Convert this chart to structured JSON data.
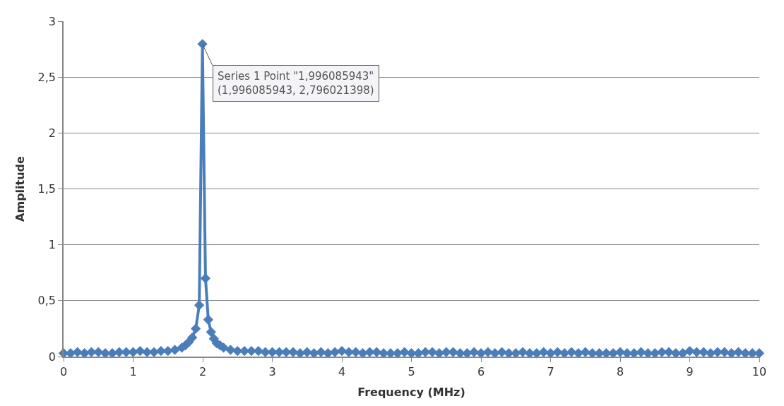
{
  "chart_data": {
    "type": "line",
    "xlabel": "Frequency (MHz)",
    "ylabel": "Amplitude",
    "series": [
      {
        "color": "#4a7ebb",
        "x": [
          0,
          0.1,
          0.2,
          0.3,
          0.4,
          0.5,
          0.6,
          0.7,
          0.8,
          0.9,
          1,
          1.1,
          1.2,
          1.3,
          1.4,
          1.5,
          1.6,
          1.7,
          1.75,
          1.8,
          1.85,
          1.9,
          1.95,
          1.996,
          2.04,
          2.08,
          2.12,
          2.16,
          2.2,
          2.25,
          2.3,
          2.4,
          2.5,
          2.6,
          2.7,
          2.8,
          2.9,
          3,
          3.1,
          3.2,
          3.3,
          3.4,
          3.5,
          3.6,
          3.7,
          3.8,
          3.9,
          4,
          4.1,
          4.2,
          4.3,
          4.4,
          4.5,
          4.6,
          4.7,
          4.8,
          4.9,
          5,
          5.1,
          5.2,
          5.3,
          5.4,
          5.5,
          5.6,
          5.7,
          5.8,
          5.9,
          6,
          6.1,
          6.2,
          6.3,
          6.4,
          6.5,
          6.6,
          6.7,
          6.8,
          6.9,
          7,
          7.1,
          7.2,
          7.3,
          7.4,
          7.5,
          7.6,
          7.7,
          7.8,
          7.9,
          8,
          8.1,
          8.2,
          8.3,
          8.4,
          8.5,
          8.6,
          8.7,
          8.8,
          8.9,
          9,
          9.1,
          9.2,
          9.3,
          9.4,
          9.5,
          9.6,
          9.7,
          9.8,
          9.9,
          10
        ],
        "values": [
          0.03,
          0.03,
          0.04,
          0.03,
          0.04,
          0.04,
          0.03,
          0.03,
          0.04,
          0.04,
          0.04,
          0.05,
          0.04,
          0.04,
          0.05,
          0.05,
          0.06,
          0.08,
          0.1,
          0.13,
          0.17,
          0.25,
          0.46,
          2.796,
          0.7,
          0.33,
          0.22,
          0.16,
          0.12,
          0.1,
          0.08,
          0.06,
          0.05,
          0.05,
          0.05,
          0.05,
          0.04,
          0.04,
          0.04,
          0.04,
          0.04,
          0.03,
          0.04,
          0.03,
          0.04,
          0.03,
          0.04,
          0.05,
          0.04,
          0.04,
          0.03,
          0.04,
          0.04,
          0.03,
          0.03,
          0.03,
          0.04,
          0.03,
          0.03,
          0.04,
          0.04,
          0.03,
          0.04,
          0.04,
          0.03,
          0.03,
          0.04,
          0.03,
          0.04,
          0.03,
          0.04,
          0.03,
          0.03,
          0.04,
          0.03,
          0.03,
          0.04,
          0.03,
          0.04,
          0.03,
          0.04,
          0.03,
          0.04,
          0.03,
          0.03,
          0.03,
          0.03,
          0.04,
          0.03,
          0.03,
          0.04,
          0.03,
          0.03,
          0.04,
          0.04,
          0.03,
          0.03,
          0.05,
          0.04,
          0.04,
          0.03,
          0.04,
          0.04,
          0.03,
          0.04,
          0.03,
          0.03,
          0.03
        ]
      }
    ],
    "xlim": [
      0,
      10
    ],
    "xticks": [
      0,
      1,
      2,
      3,
      4,
      5,
      6,
      7,
      8,
      9,
      10
    ],
    "ylim": [
      0,
      3
    ],
    "yticks": [
      0,
      {
        "value": 0.5,
        "label": "0,5"
      },
      1,
      {
        "value": 1.5,
        "label": "1,5"
      },
      2,
      {
        "value": 2.5,
        "label": "2,5"
      },
      3
    ],
    "grid": "y",
    "marker": "diamond",
    "line_style": "solid",
    "annotations": [
      {
        "text": "Series 1 Point \"1,996085943\"\n(1,996085943, 2,796021398)",
        "x": 1.996,
        "y": 2.796
      }
    ]
  }
}
